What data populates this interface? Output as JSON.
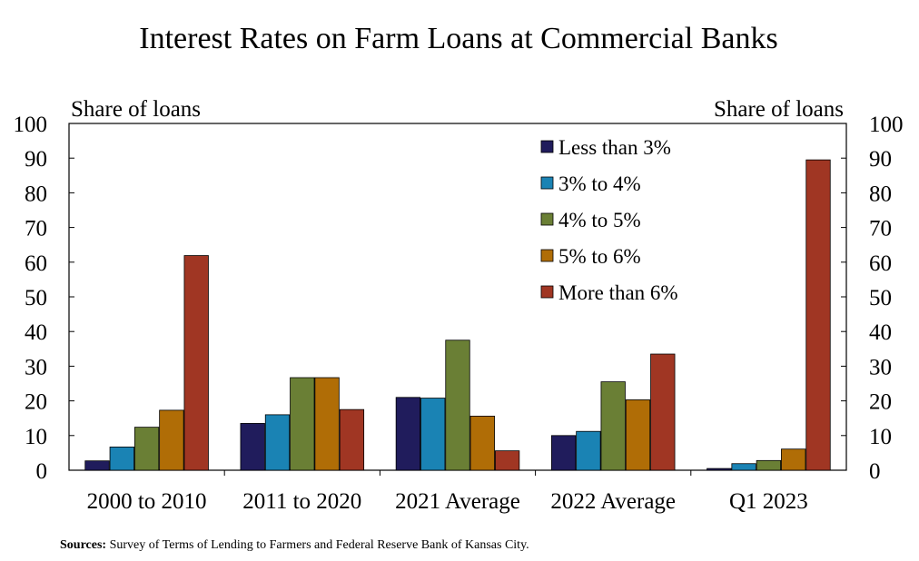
{
  "chart_data": {
    "type": "bar",
    "title": "Interest Rates on Farm Loans at Commercial Banks",
    "ylabel_left": "Share of loans",
    "ylabel_right": "Share of loans",
    "ylim": [
      0,
      100
    ],
    "yticks": [
      0,
      10,
      20,
      30,
      40,
      50,
      60,
      70,
      80,
      90,
      100
    ],
    "categories": [
      "2000 to 2010",
      "2011 to 2020",
      "2021 Average",
      "2022 Average",
      "Q1 2023"
    ],
    "legend_position": "top-right",
    "series": [
      {
        "name": "Less than 3%",
        "color": "#201c5c",
        "values": [
          2.7,
          13.5,
          21.0,
          10.0,
          0.5
        ]
      },
      {
        "name": "3% to 4%",
        "color": "#1a83b4",
        "values": [
          6.7,
          16.0,
          20.8,
          11.2,
          1.9
        ]
      },
      {
        "name": "4% to 5%",
        "color": "#6a7f35",
        "values": [
          12.4,
          26.7,
          37.5,
          25.5,
          2.8
        ]
      },
      {
        "name": "5% to 6%",
        "color": "#b06d06",
        "values": [
          17.3,
          26.7,
          15.6,
          20.3,
          6.1
        ]
      },
      {
        "name": "More than 6%",
        "color": "#a03623",
        "values": [
          61.9,
          17.5,
          5.6,
          33.5,
          89.5
        ]
      }
    ]
  },
  "sources": {
    "label": "Sources:",
    "text": " Survey of Terms of Lending to Farmers and Federal Reserve Bank of Kansas City."
  }
}
